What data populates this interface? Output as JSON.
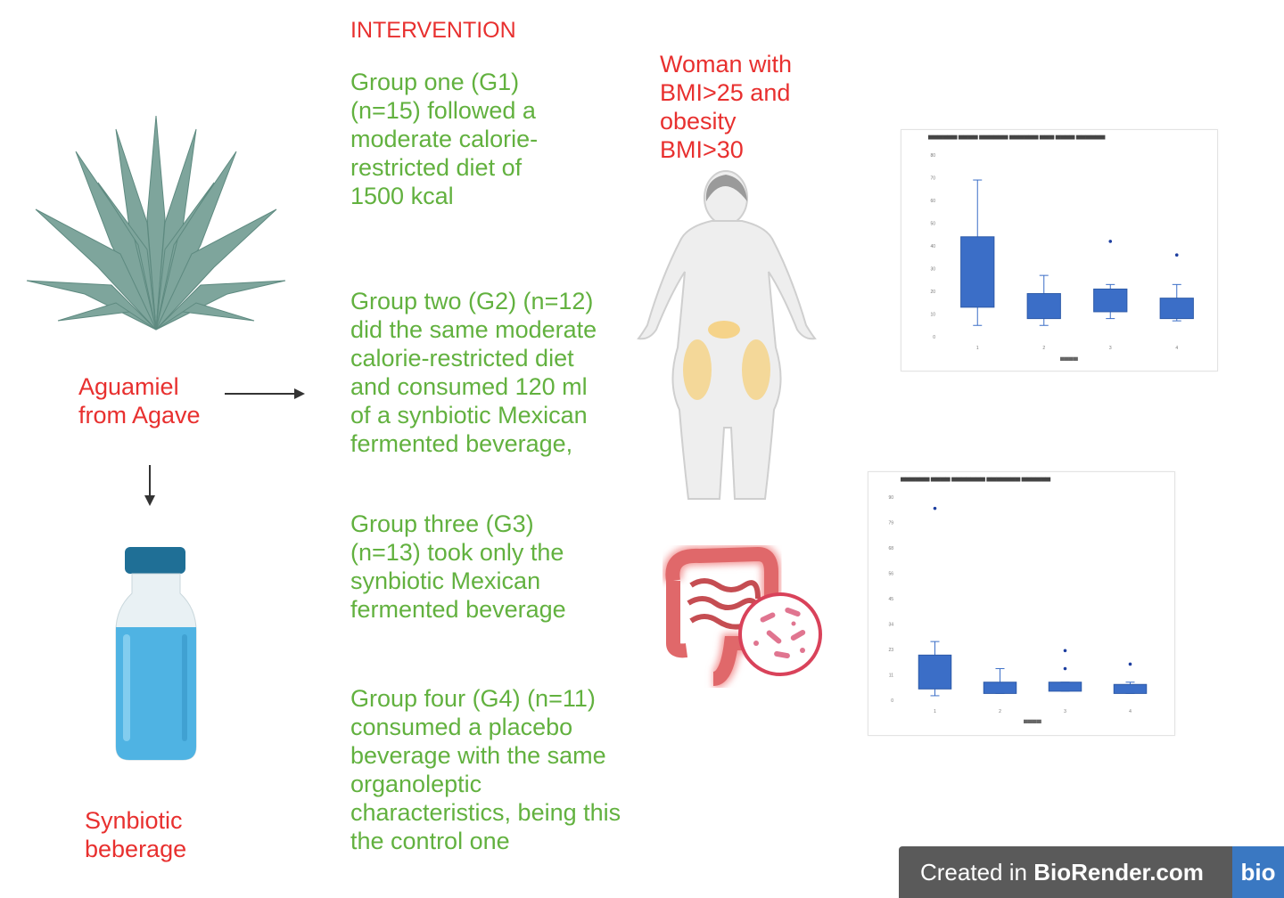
{
  "header": {
    "title": "INTERVENTION"
  },
  "labels": {
    "agave": "Aguamiel\nfrom Agave",
    "beverage": "Synbiotic\nbeberage",
    "woman": "Woman with\nBMI>25 and\nobesity\nBMI>30"
  },
  "groups": [
    {
      "text": "Group one (G1)\n(n=15) followed a\nmoderate calorie-\nrestricted diet of\n1500 kcal"
    },
    {
      "text": "Group two (G2) (n=12)\ndid the same moderate\ncalorie-restricted diet\nand consumed 120 ml\nof a synbiotic Mexican\nfermented beverage,"
    },
    {
      "text": "Group three (G3)\n(n=13) took only the\nsynbiotic Mexican\nfermented beverage"
    },
    {
      "text": "Group four (G4) (n=11)\nconsumed a placebo\nbeverage with the same\norganoleptic\ncharacteristics, being this\nthe control one"
    }
  ],
  "footer": {
    "created_prefix": "Created in ",
    "brand": "BioRender.com",
    "logo": "bio"
  },
  "colors": {
    "accent_red": "#e8302f",
    "accent_green": "#62b13f",
    "box_blue": "#3b6ec7",
    "agave": "#7ea59c",
    "bottle_cap": "#1f6f96",
    "liquid": "#4fb3e3"
  },
  "icons": [
    "agave-plant-icon",
    "bottle-icon",
    "woman-body-icon",
    "gut-microbiota-icon"
  ],
  "chart_data": [
    {
      "type": "box",
      "categories": [
        "1",
        "2",
        "3",
        "4"
      ],
      "ylim": [
        0,
        80
      ],
      "boxes": [
        {
          "min": 5,
          "q1": 13,
          "q3": 44,
          "max": 69,
          "outliers": []
        },
        {
          "min": 5,
          "q1": 8,
          "q3": 19,
          "max": 27,
          "outliers": []
        },
        {
          "min": 8,
          "q1": 11,
          "q3": 21,
          "max": 23,
          "outliers": [
            42
          ]
        },
        {
          "min": 7,
          "q1": 8,
          "q3": 17,
          "max": 23,
          "outliers": [
            36
          ]
        }
      ]
    },
    {
      "type": "box",
      "categories": [
        "1",
        "2",
        "3",
        "4"
      ],
      "ylim": [
        0,
        90
      ],
      "boxes": [
        {
          "min": 2,
          "q1": 5,
          "q3": 20,
          "max": 26,
          "outliers": [
            85
          ]
        },
        {
          "min": 3,
          "q1": 3,
          "q3": 8,
          "max": 14,
          "outliers": []
        },
        {
          "min": 4,
          "q1": 4,
          "q3": 8,
          "max": 8,
          "outliers": [
            14,
            22
          ]
        },
        {
          "min": 3,
          "q1": 3,
          "q3": 7,
          "max": 8,
          "outliers": [
            16
          ]
        }
      ]
    }
  ]
}
